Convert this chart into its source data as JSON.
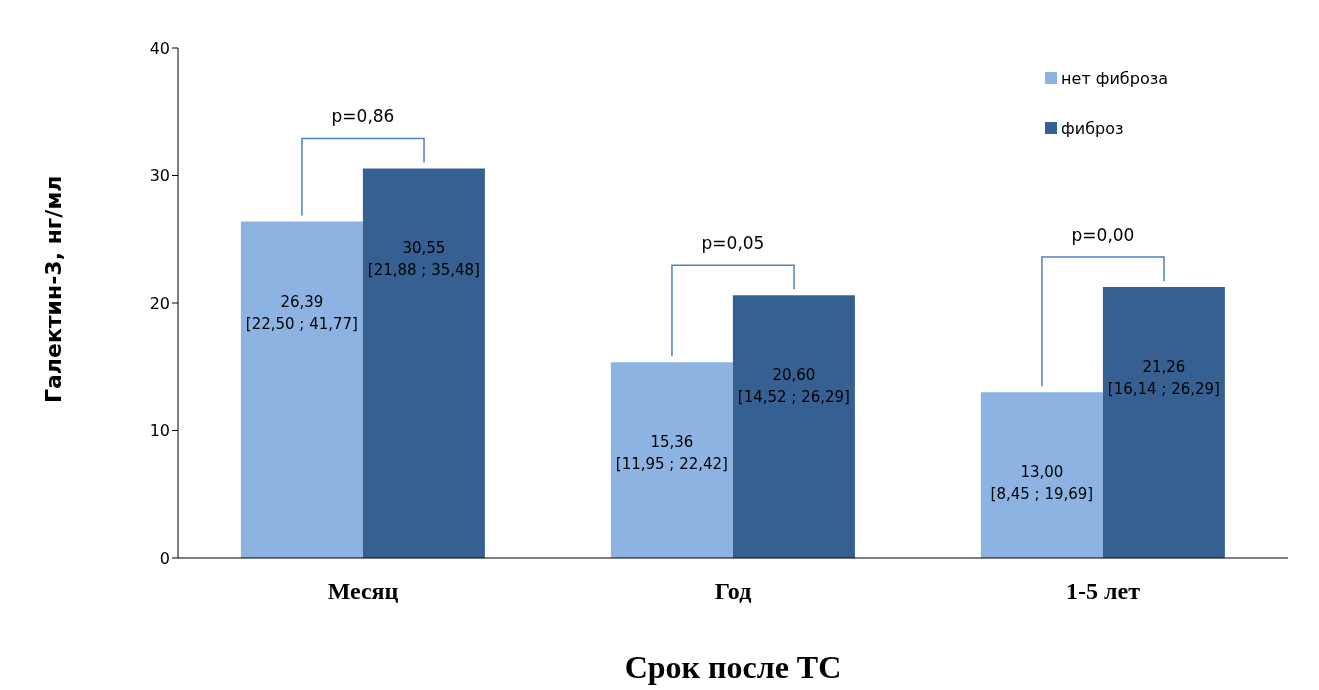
{
  "chart_data": {
    "type": "bar",
    "xlabel": "Срок после ТС",
    "ylabel": "Галектин-3, нг/мл",
    "categories": [
      "Месяц",
      "Год",
      "1-5 лет"
    ],
    "series": [
      {
        "name": "нет фиброза",
        "color": "#8db3e2",
        "values": [
          26.39,
          15.36,
          13.0
        ],
        "value_labels": [
          "26,39\n[22,50 ; 41,77]",
          "15,36\n[11,95 ; 22,42]",
          "13,00\n[8,45 ; 19,69]"
        ]
      },
      {
        "name": "фиброз",
        "color": "#376092",
        "values": [
          30.55,
          20.6,
          21.26
        ],
        "value_labels": [
          "30,55\n[21,88 ; 35,48]",
          "20,60\n[14,52 ; 26,29]",
          "21,26\n[16,14 ; 26,29]"
        ]
      }
    ],
    "ylim": [
      0,
      40
    ],
    "yticks": [
      0,
      10,
      20,
      30,
      40
    ],
    "grid": false,
    "legend": "top right",
    "annotations": [
      "p=0,86",
      "p=0,05",
      "p=0,00"
    ]
  }
}
